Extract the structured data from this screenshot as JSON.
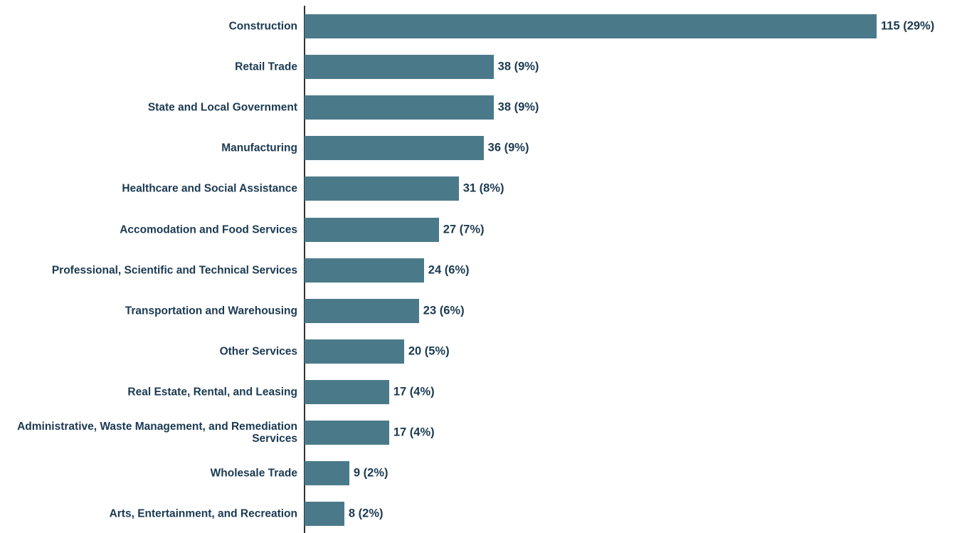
{
  "chart_data": {
    "type": "barh",
    "categories": [
      "Construction",
      "Retail Trade",
      "State and Local Government",
      "Manufacturing",
      "Healthcare and Social Assistance",
      "Accomodation and Food Services",
      "Professional, Scientific and Technical Services",
      "Transportation and Warehousing",
      "Other Services",
      "Real Estate, Rental, and Leasing",
      "Administrative, Waste Management, and Remediation Services",
      "Wholesale Trade",
      "Arts, Entertainment, and Recreation"
    ],
    "values": [
      115,
      38,
      38,
      36,
      31,
      27,
      24,
      23,
      20,
      17,
      17,
      9,
      8
    ],
    "value_labels": [
      "115 (29%)",
      "38 (9%)",
      "38 (9%)",
      "36 (9%)",
      "31 (8%)",
      "27 (7%)",
      "24 (6%)",
      "23 (6%)",
      "20 (5%)",
      "17 (4%)",
      "17 (4%)",
      "9 (2%)",
      "8 (2%)"
    ],
    "color": "#4a7a8a",
    "xlim": [
      0,
      115
    ]
  }
}
